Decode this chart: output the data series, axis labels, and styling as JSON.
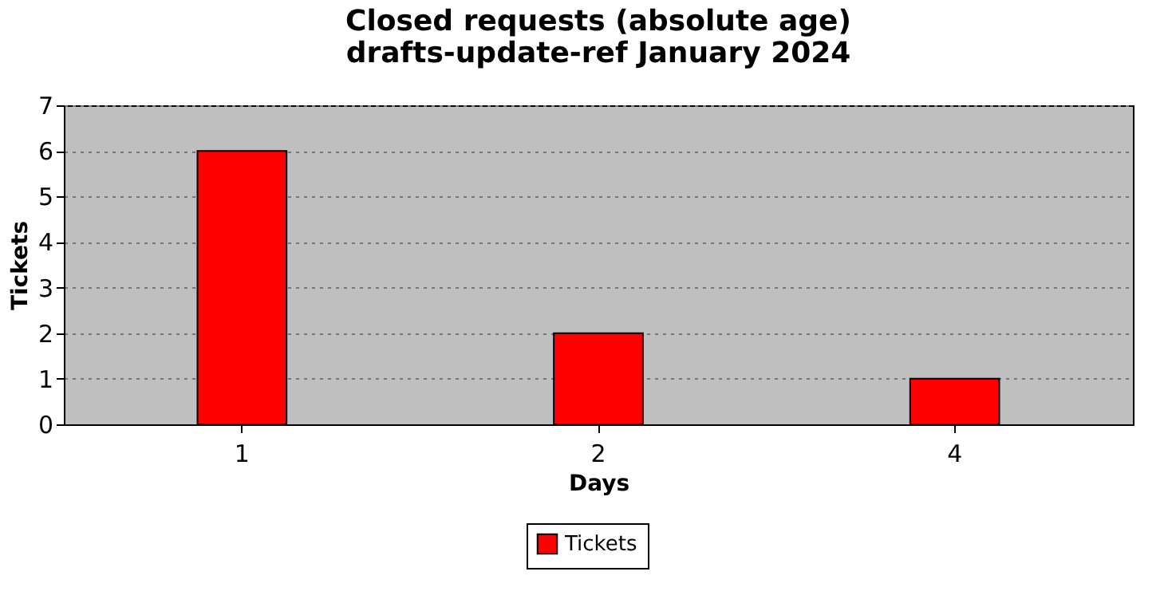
{
  "chart_data": {
    "type": "bar",
    "title": [
      "Closed requests (absolute age)",
      "drafts-update-ref January 2024"
    ],
    "xlabel": "Days",
    "ylabel": "Tickets",
    "categories": [
      "1",
      "2",
      "4"
    ],
    "series": [
      {
        "name": "Tickets",
        "color": "#ff0000",
        "values": [
          6,
          2,
          1
        ]
      }
    ],
    "ylim": [
      0,
      7
    ],
    "yticks": [
      0,
      1,
      2,
      3,
      4,
      5,
      6,
      7
    ],
    "grid": "y",
    "legend": "bottom"
  }
}
